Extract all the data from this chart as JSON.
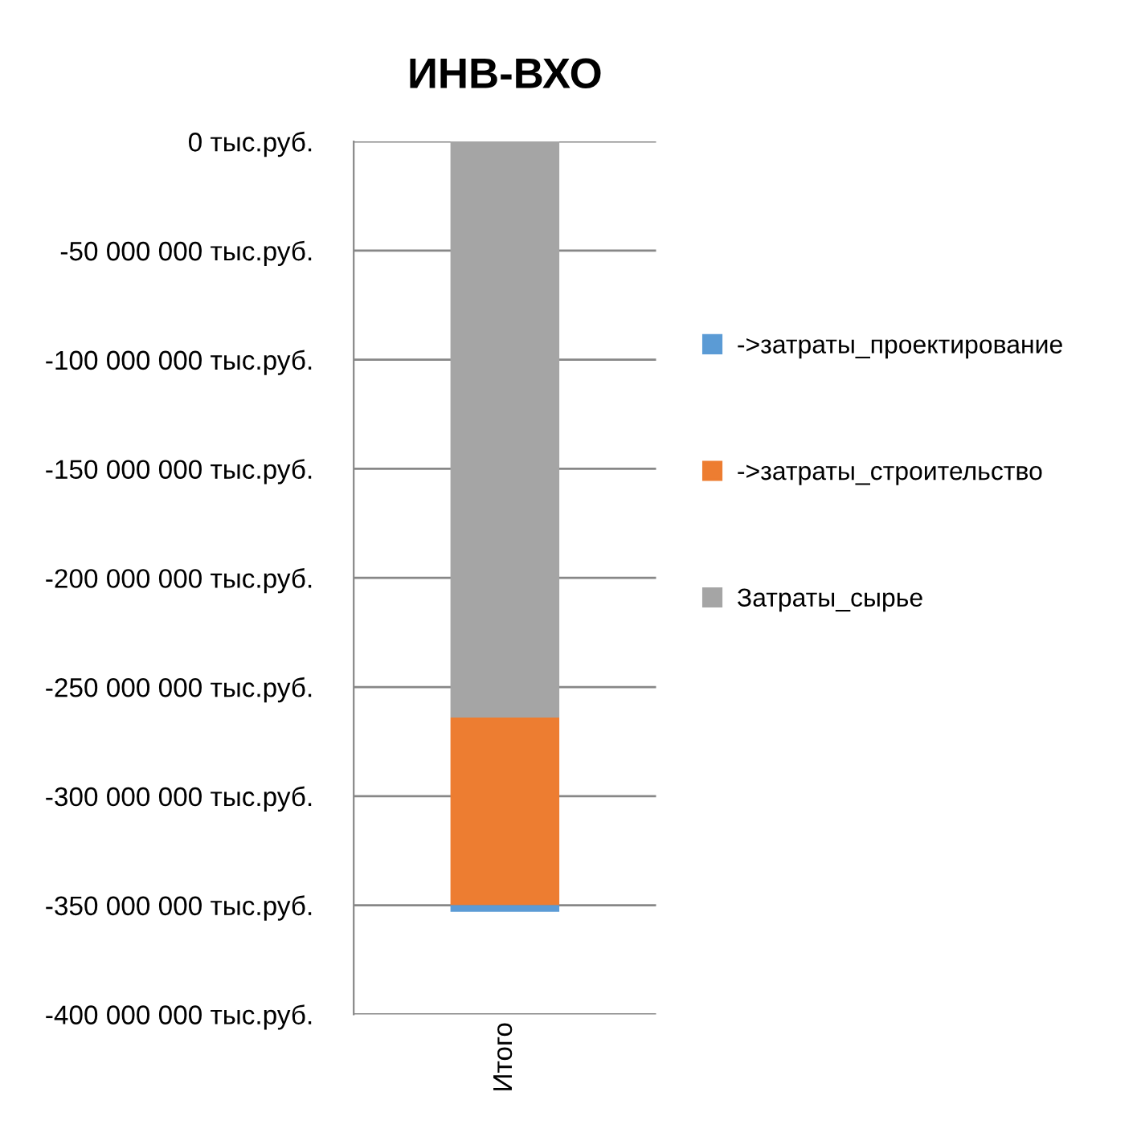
{
  "chart_data": {
    "type": "bar",
    "stacked": true,
    "title": "ИНВ-ВХО",
    "categories": [
      "Итого"
    ],
    "series": [
      {
        "name": "Затраты_сырье",
        "color": "#a5a5a5",
        "values": [
          -264000000
        ]
      },
      {
        "name": "->затраты_строительство",
        "color": "#ed7d31",
        "values": [
          -86000000
        ]
      },
      {
        "name": "->затраты_проектирование",
        "color": "#5b9bd5",
        "values": [
          -3000000
        ]
      }
    ],
    "ylim": [
      -400000000,
      0
    ],
    "yticks": [
      {
        "value": 0,
        "label": "0 тыс.руб."
      },
      {
        "value": -50000000,
        "label": "-50 000 000 тыс.руб."
      },
      {
        "value": -100000000,
        "label": "-100 000 000 тыс.руб."
      },
      {
        "value": -150000000,
        "label": "-150 000 000 тыс.руб."
      },
      {
        "value": -200000000,
        "label": "-200 000 000 тыс.руб."
      },
      {
        "value": -250000000,
        "label": "-250 000 000 тыс.руб."
      },
      {
        "value": -300000000,
        "label": "-300 000 000 тыс.руб."
      },
      {
        "value": -350000000,
        "label": "-350 000 000 тыс.руб."
      },
      {
        "value": -400000000,
        "label": "-400 000 000 тыс.руб."
      }
    ],
    "grid": "y",
    "legend": "right"
  }
}
